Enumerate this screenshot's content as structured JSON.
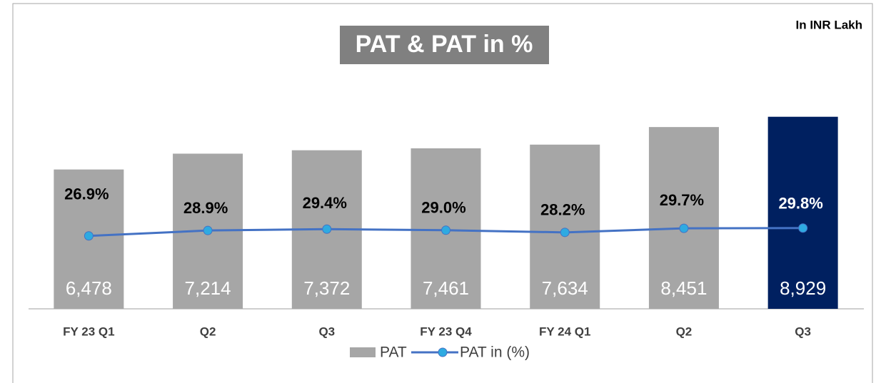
{
  "chart_data": {
    "type": "bar_line",
    "title": "PAT & PAT in %",
    "subtitle": "In INR Lakh",
    "categories": [
      "FY 23 Q1",
      "Q2",
      "Q3",
      "FY 23 Q4",
      "FY 24 Q1",
      "Q2",
      "Q3"
    ],
    "ylim": [
      0,
      12600
    ],
    "y2lim": [
      0,
      100
    ],
    "series": [
      {
        "name": "PAT",
        "type": "bar",
        "colors": [
          "#a6a6a6",
          "#a6a6a6",
          "#a6a6a6",
          "#a6a6a6",
          "#a6a6a6",
          "#a6a6a6",
          "#002060"
        ],
        "values": [
          6478,
          7214,
          7372,
          7461,
          7634,
          8451,
          8929
        ],
        "value_labels": [
          "6,478",
          "7,214",
          "7,372",
          "7,461",
          "7,634",
          "8,451",
          "8,929"
        ]
      },
      {
        "name": "PAT in (%)",
        "type": "line",
        "axis": "y2",
        "color": "#4472c4",
        "marker_color": "#2eaae1",
        "values": [
          26.9,
          28.9,
          29.4,
          29.0,
          28.2,
          29.7,
          29.8
        ],
        "value_labels": [
          "26.9%",
          "28.9%",
          "29.4%",
          "29.0%",
          "28.2%",
          "29.7%",
          "29.8%"
        ]
      }
    ],
    "legend": "bottom"
  }
}
